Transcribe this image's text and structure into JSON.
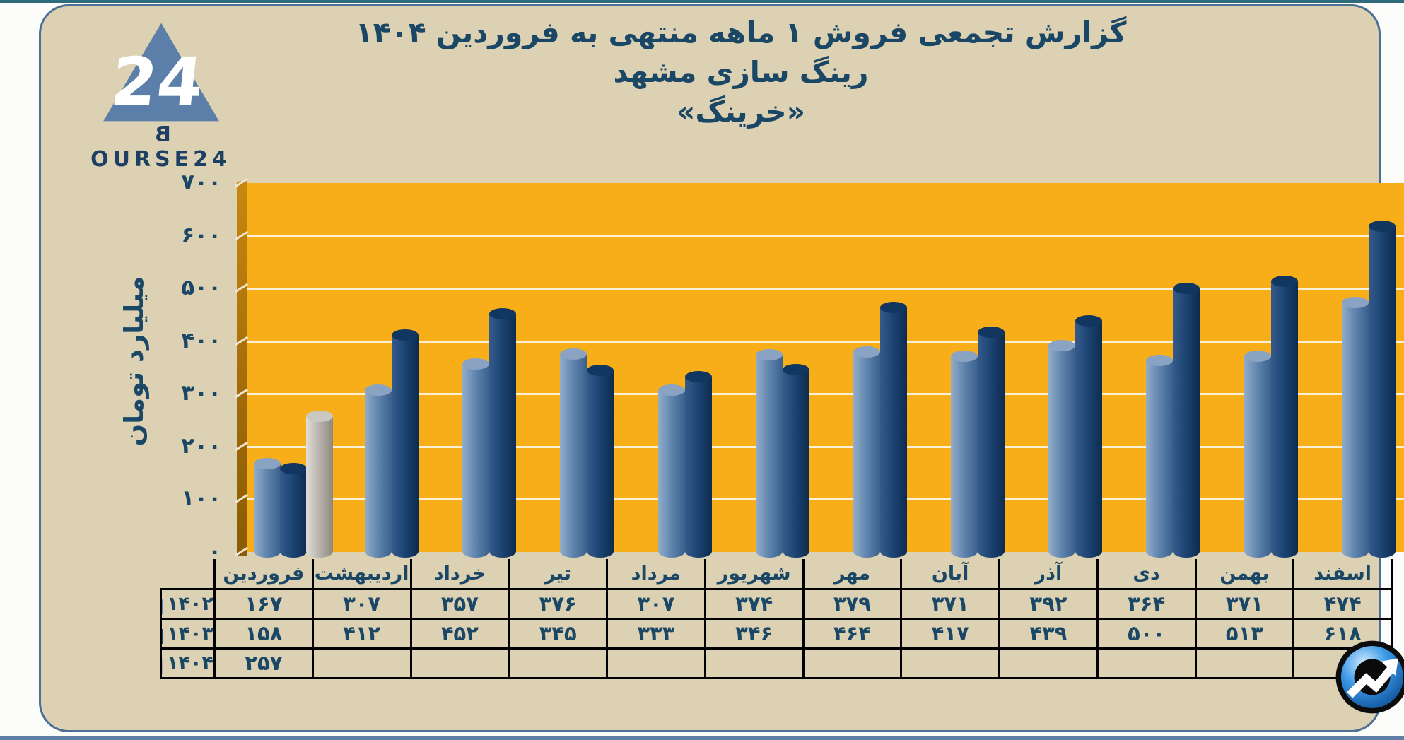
{
  "page": {
    "strip_top_color": "#2e6b7c",
    "strip_bottom_color": "#5e80a6",
    "card_bg": "#dcd1b3",
    "card_border": "#4e6f94"
  },
  "logo": {
    "name": "Bourse24",
    "triangle_number": "24",
    "first_letter": "B",
    "rest_letters": "OURSE24",
    "triangle_color": "#5b7fa8",
    "text_color": "#1c3f63"
  },
  "header": {
    "title_line1": "گزارش تجمعی فروش ۱ ماهه منتهی به فروردین ۱۴۰۴",
    "title_line2": "رینگ سازی مشهد",
    "title_line3": "«خرینگ»"
  },
  "chart_data": {
    "type": "bar",
    "title": "گزارش تجمعی فروش ۱ ماهه منتهی به فروردین ۱۴۰۴ - رینگ سازی مشهد «خرینگ»",
    "ylabel": "میلیارد تومان",
    "ylim": [
      0,
      700
    ],
    "ytick_step": 100,
    "grid": true,
    "plot_bg": "#f7ae19",
    "wall_color": "#a06a08",
    "grid_color": "#ffffff",
    "legend_position": "table-left-column",
    "categories": [
      "فروردین",
      "اردیبهشت",
      "خرداد",
      "تیر",
      "مرداد",
      "شهریور",
      "مهر",
      "آبان",
      "آذر",
      "دی",
      "بهمن",
      "اسفند"
    ],
    "series": [
      {
        "name": "1402",
        "swatch": "#5b84b5",
        "bar_light": "#93adca",
        "bar_mid": "#5d82ac",
        "bar_dark": "#3a608c",
        "bar_cap": "#8aa3c2",
        "values": [
          167,
          307,
          357,
          376,
          307,
          374,
          379,
          371,
          392,
          364,
          371,
          474
        ]
      },
      {
        "name": "1403",
        "swatch": "#164379",
        "bar_light": "#355b8c",
        "bar_mid": "#1a4270",
        "bar_dark": "#0d2b4f",
        "bar_cap": "#113761",
        "values": [
          158,
          412,
          452,
          345,
          333,
          346,
          464,
          417,
          439,
          500,
          513,
          618
        ]
      },
      {
        "name": "1404",
        "swatch": "#a9abad",
        "bar_light": "#e0ddd8",
        "bar_mid": "#b5b1aa",
        "bar_dark": "#8e897f",
        "bar_cap": "#cbc8c2",
        "values": [
          257,
          null,
          null,
          null,
          null,
          null,
          null,
          null,
          null,
          null,
          null,
          null
        ]
      }
    ]
  }
}
